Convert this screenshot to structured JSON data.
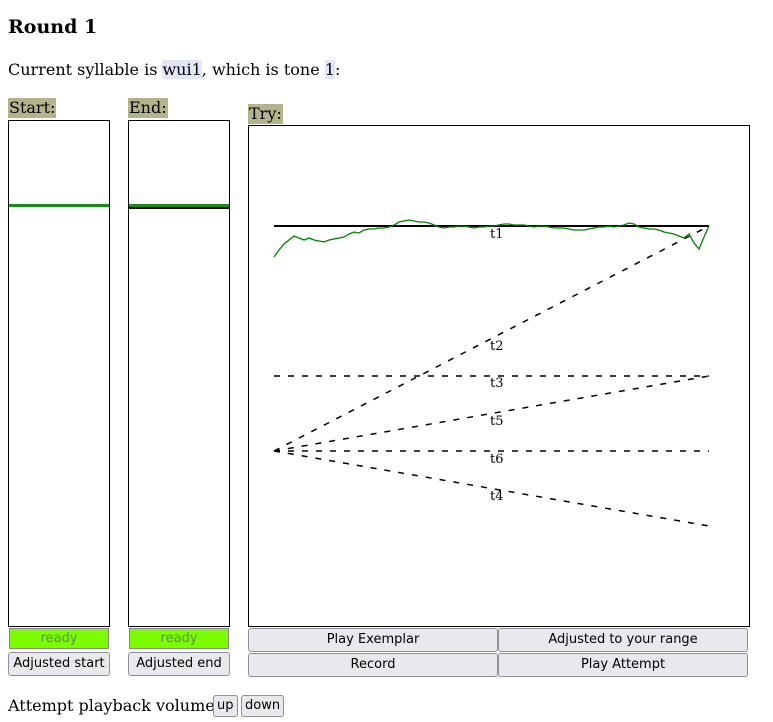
{
  "page": {
    "title": "Round 1",
    "syllable_prefix": "Current syllable is ",
    "syllable": "wui1",
    "tone_prefix": ", which is tone ",
    "tone": "1",
    "tone_suffix": ":"
  },
  "start_panel": {
    "label": "Start:",
    "status": "ready",
    "button": "Adjusted start"
  },
  "end_panel": {
    "label": "End:",
    "status": "ready",
    "button": "Adjusted end"
  },
  "try_panel": {
    "label": "Try:",
    "tone_labels": [
      "t1",
      "t2",
      "t3",
      "t5",
      "t6",
      "t4"
    ]
  },
  "controls": {
    "play_exemplar": "Play Exemplar",
    "adjusted_range": "Adjusted to your range",
    "record": "Record",
    "play_attempt": "Play Attempt"
  },
  "volume": {
    "label": "Attempt playback volume:",
    "up": "up",
    "down": "down"
  },
  "colors": {
    "label_bg": "#b4b48c",
    "ready_bg": "#7cfc00",
    "pitch_trace": "#008000",
    "highlight": "#e4e6f7"
  }
}
